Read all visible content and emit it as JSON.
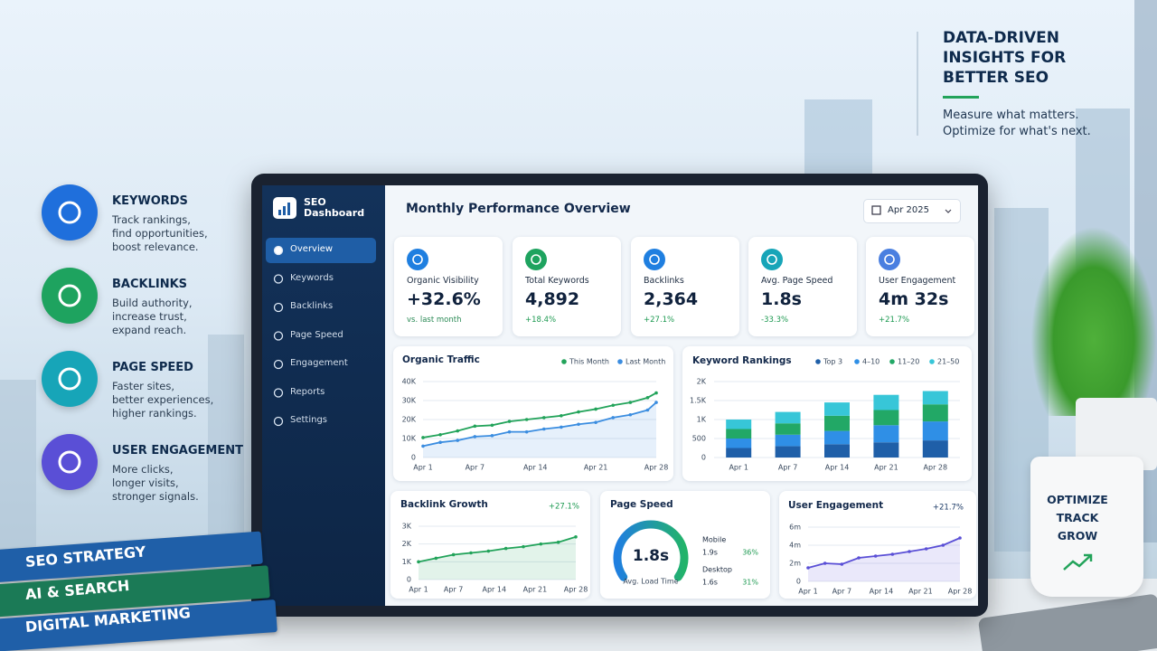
{
  "headline": {
    "title": [
      "DATA-DRIVEN",
      "INSIGHTS FOR",
      "BETTER SEO"
    ],
    "lines": [
      "Measure what matters.",
      "Optimize for what's next."
    ]
  },
  "features": [
    {
      "title": "KEYWORDS",
      "lines": [
        "Track rankings,",
        "find opportunities,",
        "boost relevance."
      ],
      "color": "#1f6fdc"
    },
    {
      "title": "BACKLINKS",
      "lines": [
        "Build authority,",
        "increase trust,",
        "expand reach."
      ],
      "color": "#1ea35f"
    },
    {
      "title": "PAGE SPEED",
      "lines": [
        "Faster sites,",
        "better experiences,",
        "higher rankings."
      ],
      "color": "#17a5b8"
    },
    {
      "title": "USER ENGAGEMENT",
      "lines": [
        "More clicks,",
        "longer visits,",
        "stronger signals."
      ],
      "color": "#5a4fd6"
    }
  ],
  "books": [
    "SEO STRATEGY",
    "AI & SEARCH",
    "DIGITAL MARKETING"
  ],
  "mug": [
    "OPTIMIZE",
    "TRACK",
    "GROW"
  ],
  "dashboard": {
    "brand": [
      "SEO",
      "Dashboard"
    ],
    "nav": [
      "Overview",
      "Keywords",
      "Backlinks",
      "Page Speed",
      "Engagement",
      "Reports",
      "Settings"
    ],
    "active_nav": 0,
    "title": "Monthly Performance Overview",
    "date": "Apr 2025",
    "kpis": [
      {
        "label": "Organic Visibility",
        "value": "+32.6%",
        "sub": "vs. last month",
        "color": "#1f7fe0"
      },
      {
        "label": "Total Keywords",
        "value": "4,892",
        "sub": "+18.4%",
        "color": "#1ea35f"
      },
      {
        "label": "Backlinks",
        "value": "2,364",
        "sub": "+27.1%",
        "color": "#1f7fe0"
      },
      {
        "label": "Avg. Page Speed",
        "value": "1.8s",
        "sub": "-33.3%",
        "color": "#17a5b8"
      },
      {
        "label": "User Engagement",
        "value": "4m 32s",
        "sub": "+21.7%",
        "color": "#4a7fe0"
      }
    ],
    "organic_traffic": {
      "type": "line",
      "title": "Organic Traffic",
      "x": [
        1,
        3,
        5,
        7,
        9,
        11,
        13,
        15,
        17,
        19,
        21,
        23,
        25,
        27,
        28
      ],
      "xlim": [
        1,
        28
      ],
      "xticks": [
        {
          "value": 1,
          "label": "Apr 1"
        },
        {
          "value": 7,
          "label": "Apr 7"
        },
        {
          "value": 14,
          "label": "Apr 14"
        },
        {
          "value": 21,
          "label": "Apr 21"
        },
        {
          "value": 28,
          "label": "Apr 28"
        }
      ],
      "ylim": [
        0,
        40000
      ],
      "yticks": [
        0,
        {
          "value": 10000,
          "label": "10K"
        },
        {
          "value": 20000,
          "label": "20K"
        },
        {
          "value": 30000,
          "label": "30K"
        },
        {
          "value": 40000,
          "label": "40K"
        }
      ],
      "series": [
        {
          "name": "This Month",
          "color": "#22a35a",
          "values": [
            10500,
            12000,
            14000,
            16500,
            17000,
            19000,
            20000,
            21000,
            22000,
            24000,
            25500,
            27500,
            29000,
            31500,
            34000
          ]
        },
        {
          "name": "Last Month",
          "color": "#3b8de0",
          "values": [
            6000,
            8000,
            9000,
            11000,
            11500,
            13500,
            13500,
            15000,
            16000,
            17500,
            18500,
            21000,
            22500,
            25000,
            29000
          ]
        }
      ]
    },
    "keyword_rankings": {
      "type": "stacked_bar",
      "title": "Keyword Rankings",
      "categories": [
        "Apr 1",
        "Apr 7",
        "Apr 14",
        "Apr 21",
        "Apr 28"
      ],
      "ylim": [
        0,
        2000
      ],
      "yticks": [
        0,
        500,
        {
          "value": 1000,
          "label": "1K"
        },
        {
          "value": 1500,
          "label": "1.5K"
        },
        {
          "value": 2000,
          "label": "2K"
        }
      ],
      "series": [
        {
          "name": "Top 3",
          "color": "#1f5fa8",
          "values": [
            250,
            300,
            350,
            400,
            450
          ]
        },
        {
          "name": "4–10",
          "color": "#2f8fe6",
          "values": [
            250,
            300,
            350,
            450,
            500
          ]
        },
        {
          "name": "11–20",
          "color": "#22a866",
          "values": [
            250,
            300,
            400,
            400,
            450
          ]
        },
        {
          "name": "21–50",
          "color": "#37c6d8",
          "values": [
            250,
            300,
            350,
            400,
            350
          ]
        }
      ]
    },
    "backlink_growth": {
      "type": "line",
      "title": "Backlink Growth",
      "badge": "+27.1%",
      "x": [
        1,
        4,
        7,
        10,
        13,
        16,
        19,
        22,
        25,
        28
      ],
      "xlim": [
        1,
        28
      ],
      "xticks": [
        {
          "value": 1,
          "label": "Apr 1"
        },
        {
          "value": 7,
          "label": "Apr 7"
        },
        {
          "value": 14,
          "label": "Apr 14"
        },
        {
          "value": 21,
          "label": "Apr 21"
        },
        {
          "value": 28,
          "label": "Apr 28"
        }
      ],
      "ylim": [
        0,
        3000
      ],
      "yticks": [
        0,
        {
          "value": 1000,
          "label": "1K"
        },
        {
          "value": 2000,
          "label": "2K"
        },
        {
          "value": 3000,
          "label": "3K"
        }
      ],
      "series": [
        {
          "name": "Backlinks",
          "color": "#22a35a",
          "values": [
            1000,
            1200,
            1400,
            1500,
            1600,
            1750,
            1850,
            2000,
            2100,
            2400
          ]
        }
      ]
    },
    "page_speed": {
      "title": "Page Speed",
      "value": "1.8s",
      "caption": "Avg. Load Time",
      "rows": [
        {
          "label": "Mobile",
          "value": "1.9s",
          "change": "36%"
        },
        {
          "label": "Desktop",
          "value": "1.6s",
          "change": "31%"
        }
      ]
    },
    "user_engagement": {
      "type": "line",
      "title": "User Engagement",
      "badge": "+21.7%",
      "x": [
        1,
        4,
        7,
        10,
        13,
        16,
        19,
        22,
        25,
        28
      ],
      "xlim": [
        1,
        28
      ],
      "xticks": [
        {
          "value": 1,
          "label": "Apr 1"
        },
        {
          "value": 7,
          "label": "Apr 7"
        },
        {
          "value": 14,
          "label": "Apr 14"
        },
        {
          "value": 21,
          "label": "Apr 21"
        },
        {
          "value": 28,
          "label": "Apr 28"
        }
      ],
      "ylim": [
        0,
        6
      ],
      "yticks": [
        0,
        {
          "value": 2,
          "label": "2m"
        },
        {
          "value": 4,
          "label": "4m"
        },
        {
          "value": 6,
          "label": "6m"
        }
      ],
      "series": [
        {
          "name": "Engagement",
          "color": "#5a4fd6",
          "values": [
            1.5,
            2.0,
            1.9,
            2.6,
            2.8,
            3.0,
            3.3,
            3.6,
            4.0,
            4.8
          ]
        }
      ]
    }
  }
}
